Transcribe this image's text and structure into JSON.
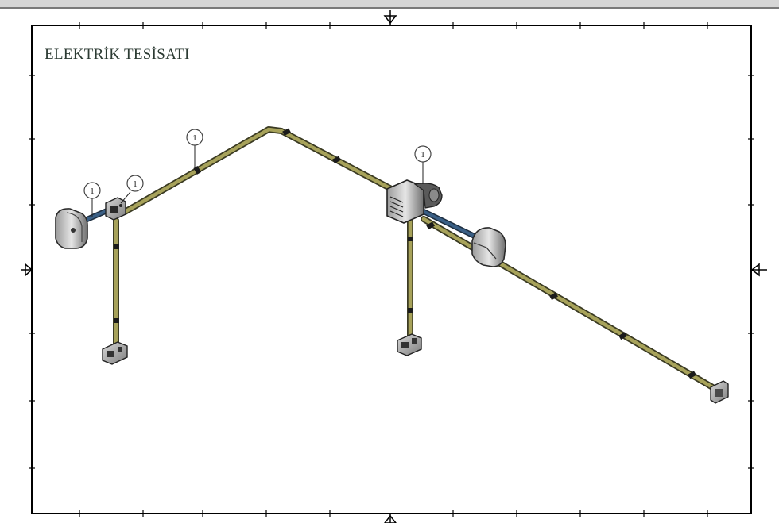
{
  "drawing": {
    "title": "ELEKTRİK TESİSATI",
    "tag_labels": [
      "1",
      "1",
      "1",
      "1"
    ],
    "conduit_color": "#a7a25a",
    "conduit_edge_color": "#3a3a22",
    "cable_color": "#3a5f85",
    "frame_color": "#000000"
  }
}
